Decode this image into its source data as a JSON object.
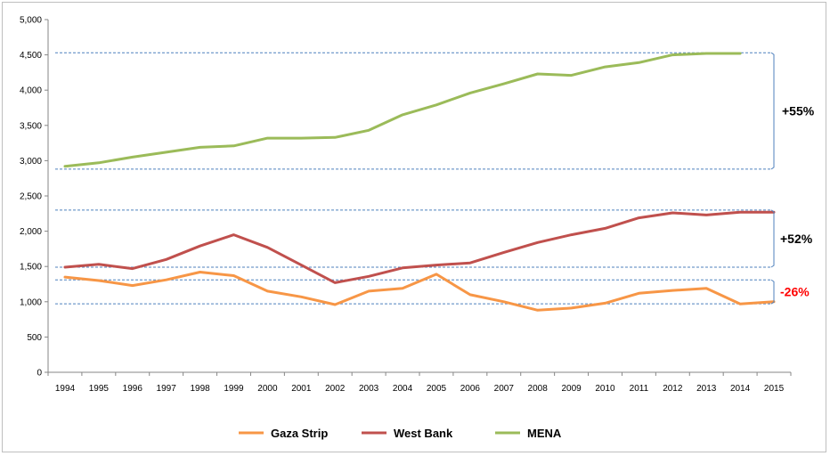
{
  "chart_data": {
    "type": "line",
    "title": "",
    "xlabel": "",
    "ylabel": "",
    "ylim": [
      0,
      5000
    ],
    "yticks": [
      0,
      500,
      1000,
      1500,
      2000,
      2500,
      3000,
      3500,
      4000,
      4500,
      5000
    ],
    "ytick_labels": [
      "0",
      "500",
      "1,000",
      "1,500",
      "2,000",
      "2,500",
      "3,000",
      "3,500",
      "4,000",
      "4,500",
      "5,000"
    ],
    "grid": false,
    "legend_position": "bottom",
    "x": [
      "1994",
      "1995",
      "1996",
      "1997",
      "1998",
      "1999",
      "2000",
      "2001",
      "2002",
      "2003",
      "2004",
      "2005",
      "2006",
      "2007",
      "2008",
      "2009",
      "2010",
      "2011",
      "2012",
      "2013",
      "2014",
      "2015"
    ],
    "series": [
      {
        "name": "Gaza Strip",
        "color": "#f79646",
        "values": [
          1350,
          1300,
          1230,
          1310,
          1420,
          1370,
          1150,
          1070,
          960,
          1150,
          1190,
          1390,
          1100,
          1000,
          880,
          910,
          980,
          1120,
          1160,
          1190,
          970,
          1000
        ]
      },
      {
        "name": "West Bank",
        "color": "#c0504d",
        "values": [
          1490,
          1530,
          1470,
          1600,
          1790,
          1950,
          1770,
          1520,
          1270,
          1360,
          1480,
          1520,
          1550,
          1700,
          1840,
          1950,
          2040,
          2190,
          2260,
          2230,
          2270,
          2270
        ]
      },
      {
        "name": "MENA",
        "color": "#9bbb59",
        "values": [
          2920,
          2970,
          3050,
          3120,
          3190,
          3210,
          3320,
          3320,
          3330,
          3430,
          3650,
          3790,
          3960,
          4090,
          4230,
          4210,
          4330,
          4390,
          4500,
          4520,
          4520,
          null
        ]
      }
    ],
    "annotations": [
      {
        "text": "+55%",
        "color": "#000000",
        "low": 2880,
        "high": 4530
      },
      {
        "text": "+52%",
        "color": "#000000",
        "low": 1490,
        "high": 2300
      },
      {
        "text": "-26%",
        "color": "#ff0000",
        "low": 970,
        "high": 1310
      }
    ]
  }
}
